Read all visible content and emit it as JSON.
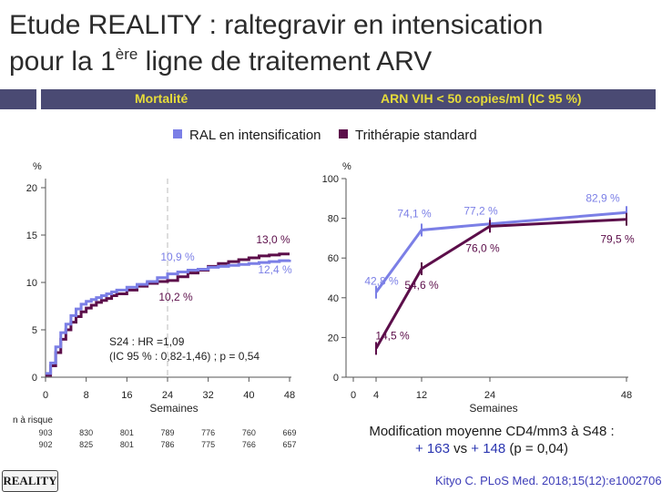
{
  "slide": {
    "title_line1": "Etude REALITY : raltegravir en intensication",
    "title_line2_pre": "pour la 1",
    "title_line2_sup": "ère",
    "title_line2_post": " ligne de  traitement ARV"
  },
  "header_bar": {
    "left_label": "Mortalité",
    "right_label": "ARN VIH < 50 copies/ml (IC 95 %)"
  },
  "legend": [
    {
      "label": "RAL en intensification",
      "color": "#7b7fe6"
    },
    {
      "label": "Trithérapie standard",
      "color": "#5c0e4a"
    }
  ],
  "chart_data": [
    {
      "type": "line",
      "title": "Mortalité",
      "ylabel": "%",
      "xlabel": "Semaines",
      "x_ticks": [
        0,
        8,
        16,
        24,
        32,
        40,
        48
      ],
      "y_ticks": [
        0,
        5,
        10,
        15,
        20
      ],
      "xlim": [
        0,
        48
      ],
      "ylim": [
        0,
        20
      ],
      "reference_line_x": 24,
      "series": [
        {
          "name": "RAL en intensification",
          "color": "#7b7fe6",
          "x": [
            0,
            1,
            2,
            3,
            4,
            5,
            6,
            7,
            8,
            9,
            10,
            11,
            12,
            13,
            14,
            16,
            18,
            20,
            22,
            24,
            26,
            28,
            30,
            32,
            34,
            36,
            38,
            40,
            42,
            44,
            46,
            48
          ],
          "y": [
            0.4,
            1.5,
            3.2,
            4.7,
            5.6,
            6.5,
            7.2,
            7.7,
            8.0,
            8.2,
            8.4,
            8.6,
            8.8,
            9.0,
            9.2,
            9.5,
            9.8,
            10.1,
            10.5,
            10.9,
            11.1,
            11.3,
            11.4,
            11.6,
            11.7,
            11.8,
            11.9,
            12.0,
            12.1,
            12.2,
            12.3,
            12.4
          ]
        },
        {
          "name": "Trithérapie standard",
          "color": "#5c0e4a",
          "x": [
            0,
            1,
            2,
            3,
            4,
            5,
            6,
            7,
            8,
            9,
            10,
            11,
            12,
            13,
            14,
            16,
            18,
            20,
            22,
            24,
            26,
            28,
            30,
            32,
            34,
            36,
            38,
            40,
            42,
            44,
            46,
            48
          ],
          "y": [
            0.2,
            1.2,
            2.6,
            4.0,
            5.0,
            5.8,
            6.4,
            6.9,
            7.3,
            7.6,
            7.9,
            8.1,
            8.3,
            8.6,
            8.8,
            9.2,
            9.6,
            9.9,
            10.1,
            10.2,
            10.6,
            11.0,
            11.3,
            11.7,
            12.0,
            12.2,
            12.4,
            12.6,
            12.8,
            12.9,
            13.0,
            13.0
          ]
        }
      ],
      "annotations": {
        "ral_end": "12,4 %",
        "std_end": "13,0 %",
        "ral_w24": "10,9 %",
        "std_w24": "10,2 %",
        "stat_line1": "S24 : HR =1,09",
        "stat_line2": "(IC 95 % : 0,82-1,46) ;  p = 0,54"
      },
      "risk_table": {
        "label": "n à risque",
        "ral": [
          "903",
          "830",
          "801",
          "789",
          "776",
          "760",
          "669"
        ],
        "std": [
          "902",
          "825",
          "801",
          "786",
          "775",
          "766",
          "657"
        ]
      }
    },
    {
      "type": "line",
      "title": "ARN VIH < 50 copies/ml (IC 95 %)",
      "ylabel": "%",
      "xlabel": "Semaines",
      "x_ticks": [
        0,
        4,
        12,
        24,
        48
      ],
      "y_ticks": [
        0,
        20,
        40,
        60,
        80,
        100
      ],
      "xlim": [
        0,
        48
      ],
      "ylim": [
        0,
        100
      ],
      "series": [
        {
          "name": "RAL en intensification",
          "color": "#7b7fe6",
          "x": [
            4,
            12,
            24,
            48
          ],
          "y": [
            42.8,
            74.1,
            77.2,
            82.9
          ],
          "labels": [
            "42,8 %",
            "74,1 %",
            "77,2 %",
            "82,9 %"
          ]
        },
        {
          "name": "Trithérapie standard",
          "color": "#5c0e4a",
          "x": [
            4,
            12,
            24,
            48
          ],
          "y": [
            14.5,
            54.6,
            76.0,
            79.5
          ],
          "labels": [
            "14,5 %",
            "54,6 %",
            "76,0 %",
            "79,5 %"
          ]
        }
      ]
    }
  ],
  "footnote": {
    "line1": "Modification moyenne CD4/mm3 à S48 :",
    "val1": "+ 163",
    "mid": " vs ",
    "val2": "+ 148",
    "tail": " (p = 0,04)"
  },
  "badge": "REALITY",
  "citation": "Kityo C. PLoS Med. 2018;15(12):e1002706"
}
